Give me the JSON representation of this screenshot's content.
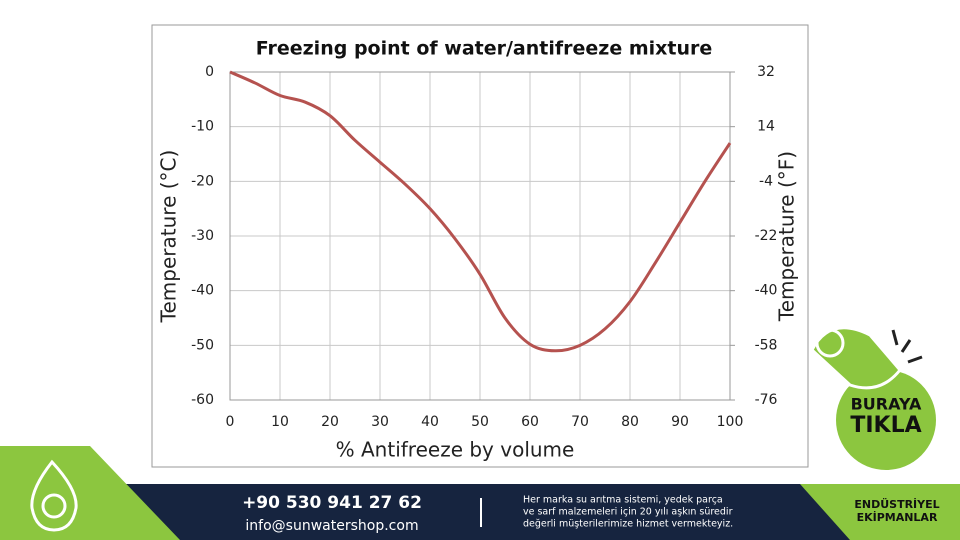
{
  "chart_data": {
    "type": "line",
    "title": "Freezing point of water/antifreeze mixture",
    "xlabel": "% Antifreeze by volume",
    "ylabel": "Temperature (°C)",
    "y2label": "Temperature (°F)",
    "x": [
      0,
      5,
      10,
      15,
      20,
      25,
      30,
      35,
      40,
      45,
      50,
      55,
      60,
      65,
      70,
      75,
      80,
      85,
      90,
      95,
      100
    ],
    "series": [
      {
        "name": "Freezing point",
        "color": "#b5524f",
        "values": [
          0,
          -2,
          -4.3,
          -5.5,
          -8,
          -12.5,
          -16.5,
          -20.5,
          -25,
          -30.5,
          -37,
          -45,
          -49.8,
          -51,
          -50,
          -47,
          -42,
          -35,
          -27.5,
          -20,
          -13
        ]
      }
    ],
    "xlim": [
      0,
      100
    ],
    "xticks": [
      0,
      10,
      20,
      30,
      40,
      50,
      60,
      70,
      80,
      90,
      100
    ],
    "ylim": [
      -60,
      0
    ],
    "yticks": [
      0,
      -10,
      -20,
      -30,
      -40,
      -50,
      -60
    ],
    "y2lim": [
      -76,
      32
    ],
    "y2ticks": [
      32,
      14,
      -4,
      -22,
      -40,
      -58,
      -76
    ],
    "grid": true
  },
  "badge": {
    "line1": "BURAYA",
    "line2": "TIKLA"
  },
  "footer": {
    "phone": "+90 530 941 27 62",
    "email": "info@sunwatershop.com",
    "blurb": [
      "Her marka su arıtma sistemi, yedek parça",
      "ve sarf malzemeleri için 20 yılı aşkın süredir",
      "değerli müşterilerimize hizmet vermekteyiz."
    ],
    "tag": [
      "ENDÜSTRİYEL",
      "EKİPMANLAR"
    ]
  }
}
